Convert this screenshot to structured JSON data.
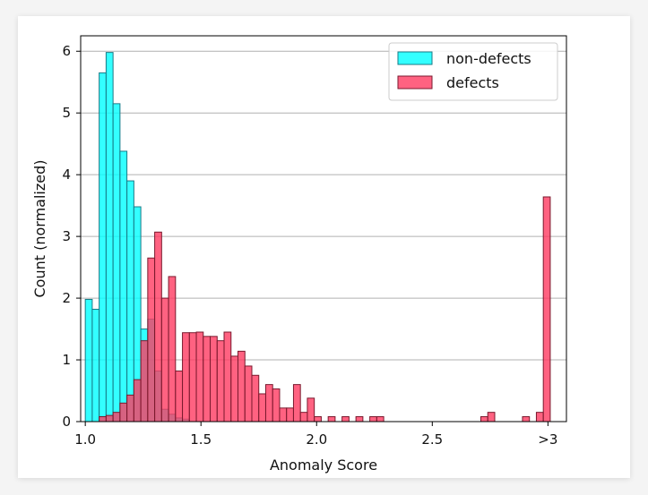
{
  "chart_data": {
    "type": "bar",
    "xlabel": "Anomaly Score",
    "ylabel": "Count (normalized)",
    "xlim": [
      0.98,
      3.08
    ],
    "ylim": [
      0,
      6.25
    ],
    "x_ticks": [
      {
        "value": 1.0,
        "label": "1.0"
      },
      {
        "value": 1.5,
        "label": "1.5"
      },
      {
        "value": 2.0,
        "label": "2.0"
      },
      {
        "value": 2.5,
        "label": "2.5"
      },
      {
        "value": 3.0,
        "label": ">3"
      }
    ],
    "y_ticks": [
      0,
      1,
      2,
      3,
      4,
      5,
      6
    ],
    "grid": "horizontal",
    "legend_position": "top-right",
    "bin_width": 0.03,
    "series": [
      {
        "name": "non-defects",
        "color": "#00ffff",
        "edge_color": "#1a7a86",
        "alpha": 0.8,
        "bins": [
          [
            1.0,
            1.98
          ],
          [
            1.03,
            1.82
          ],
          [
            1.06,
            5.65
          ],
          [
            1.09,
            5.98
          ],
          [
            1.12,
            5.15
          ],
          [
            1.15,
            4.38
          ],
          [
            1.18,
            3.9
          ],
          [
            1.21,
            3.48
          ],
          [
            1.24,
            1.5
          ],
          [
            1.27,
            1.66
          ],
          [
            1.3,
            0.82
          ],
          [
            1.33,
            0.2
          ],
          [
            1.36,
            0.12
          ],
          [
            1.39,
            0.06
          ],
          [
            1.42,
            0.04
          ]
        ]
      },
      {
        "name": "defects",
        "color": "#ff3b61",
        "edge_color": "#7a1a2e",
        "alpha": 0.8,
        "bins": [
          [
            1.06,
            0.08
          ],
          [
            1.09,
            0.1
          ],
          [
            1.12,
            0.15
          ],
          [
            1.15,
            0.3
          ],
          [
            1.18,
            0.43
          ],
          [
            1.21,
            0.68
          ],
          [
            1.24,
            1.31
          ],
          [
            1.27,
            2.65
          ],
          [
            1.3,
            3.07
          ],
          [
            1.33,
            2.0
          ],
          [
            1.36,
            2.35
          ],
          [
            1.39,
            0.82
          ],
          [
            1.42,
            1.44
          ],
          [
            1.45,
            1.44
          ],
          [
            1.48,
            1.45
          ],
          [
            1.51,
            1.38
          ],
          [
            1.54,
            1.38
          ],
          [
            1.57,
            1.31
          ],
          [
            1.6,
            1.45
          ],
          [
            1.63,
            1.06
          ],
          [
            1.66,
            1.14
          ],
          [
            1.69,
            0.9
          ],
          [
            1.72,
            0.75
          ],
          [
            1.75,
            0.45
          ],
          [
            1.78,
            0.6
          ],
          [
            1.81,
            0.53
          ],
          [
            1.84,
            0.22
          ],
          [
            1.87,
            0.22
          ],
          [
            1.9,
            0.6
          ],
          [
            1.93,
            0.15
          ],
          [
            1.96,
            0.38
          ],
          [
            1.99,
            0.08
          ],
          [
            2.05,
            0.08
          ],
          [
            2.11,
            0.08
          ],
          [
            2.17,
            0.08
          ],
          [
            2.23,
            0.08
          ],
          [
            2.26,
            0.08
          ],
          [
            2.71,
            0.08
          ],
          [
            2.74,
            0.15
          ],
          [
            2.89,
            0.08
          ],
          [
            2.95,
            0.15
          ],
          [
            2.98,
            3.64
          ]
        ]
      }
    ]
  }
}
